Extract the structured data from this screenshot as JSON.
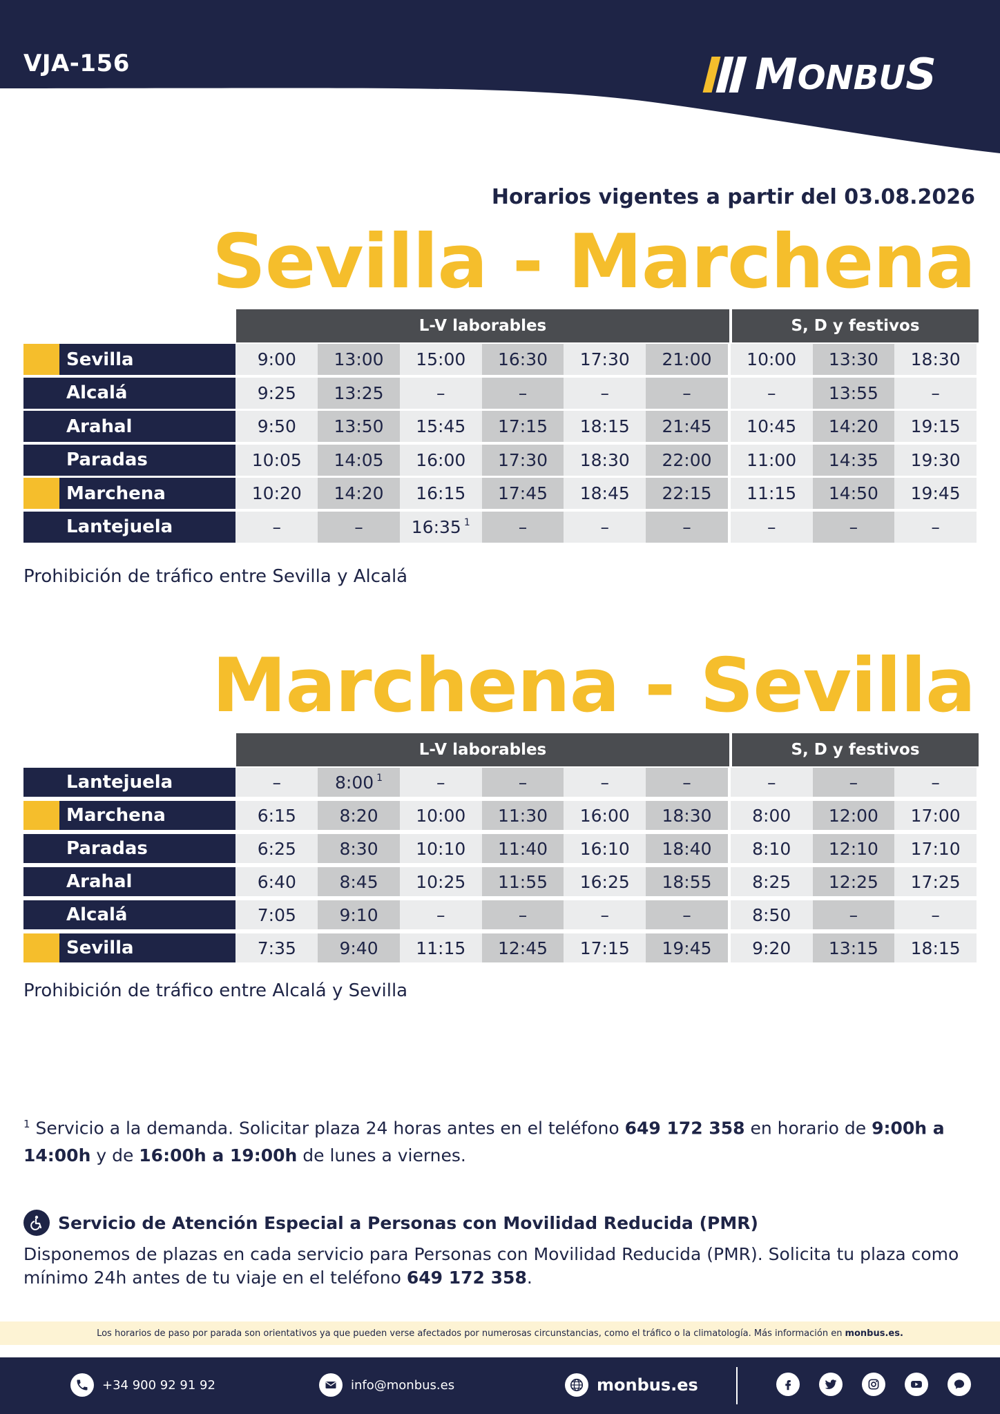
{
  "header": {
    "route_code": "VJA-156",
    "brand": "MONBUS",
    "validity": "Horarios vigentes a partir del 03.08.2026",
    "colors": {
      "navy": "#1e2446",
      "yellow": "#f5be2c",
      "gray_header": "#4a4c50"
    }
  },
  "timetables": [
    {
      "title": "Sevilla - Marchena",
      "groups": [
        {
          "label": "L-V laborables",
          "columns": 6
        },
        {
          "label": "S, D y festivos",
          "columns": 3
        }
      ],
      "rows": [
        {
          "stop": "Sevilla",
          "marked": true,
          "times": [
            "9:00",
            "13:00",
            "15:00",
            "16:30",
            "17:30",
            "21:00",
            "10:00",
            "13:30",
            "18:30"
          ]
        },
        {
          "stop": "Alcalá",
          "marked": false,
          "times": [
            "9:25",
            "13:25",
            "–",
            "–",
            "–",
            "–",
            "–",
            "13:55",
            "–"
          ]
        },
        {
          "stop": "Arahal",
          "marked": false,
          "times": [
            "9:50",
            "13:50",
            "15:45",
            "17:15",
            "18:15",
            "21:45",
            "10:45",
            "14:20",
            "19:15"
          ]
        },
        {
          "stop": "Paradas",
          "marked": false,
          "times": [
            "10:05",
            "14:05",
            "16:00",
            "17:30",
            "18:30",
            "22:00",
            "11:00",
            "14:35",
            "19:30"
          ]
        },
        {
          "stop": "Marchena",
          "marked": true,
          "times": [
            "10:20",
            "14:20",
            "16:15",
            "17:45",
            "18:45",
            "22:15",
            "11:15",
            "14:50",
            "19:45"
          ]
        },
        {
          "stop": "Lantejuela",
          "marked": false,
          "times": [
            "–",
            "–",
            "16:35",
            "–",
            "–",
            "–",
            "–",
            "–",
            "–"
          ],
          "footnote_col": 2
        }
      ],
      "note": "Prohibición de tráfico entre Sevilla y Alcalá"
    },
    {
      "title": "Marchena - Sevilla",
      "groups": [
        {
          "label": "L-V laborables",
          "columns": 6
        },
        {
          "label": "S, D y festivos",
          "columns": 3
        }
      ],
      "rows": [
        {
          "stop": "Lantejuela",
          "marked": false,
          "times": [
            "–",
            "8:00",
            "–",
            "–",
            "–",
            "–",
            "–",
            "–",
            "–"
          ],
          "footnote_col": 1
        },
        {
          "stop": "Marchena",
          "marked": true,
          "times": [
            "6:15",
            "8:20",
            "10:00",
            "11:30",
            "16:00",
            "18:30",
            "8:00",
            "12:00",
            "17:00"
          ]
        },
        {
          "stop": "Paradas",
          "marked": false,
          "times": [
            "6:25",
            "8:30",
            "10:10",
            "11:40",
            "16:10",
            "18:40",
            "8:10",
            "12:10",
            "17:10"
          ]
        },
        {
          "stop": "Arahal",
          "marked": false,
          "times": [
            "6:40",
            "8:45",
            "10:25",
            "11:55",
            "16:25",
            "18:55",
            "8:25",
            "12:25",
            "17:25"
          ]
        },
        {
          "stop": "Alcalá",
          "marked": false,
          "times": [
            "7:05",
            "9:10",
            "–",
            "–",
            "–",
            "–",
            "8:50",
            "–",
            "–"
          ]
        },
        {
          "stop": "Sevilla",
          "marked": true,
          "times": [
            "7:35",
            "9:40",
            "11:15",
            "12:45",
            "17:15",
            "19:45",
            "9:20",
            "13:15",
            "18:15"
          ]
        }
      ],
      "note": "Prohibición de tráfico entre Alcalá y Sevilla"
    }
  ],
  "footnote": {
    "marker": "1",
    "text_1": " Servicio a la demanda. Solicitar plaza 24 horas antes en el teléfono ",
    "phone": "649 172 358",
    "text_2": " en horario de ",
    "hours_1": "9:00h a 14:00h",
    "text_3": " y de ",
    "hours_2": "16:00h a 19:00h",
    "text_4": " de lunes a viernes."
  },
  "pmr": {
    "icon": "wheelchair-icon",
    "title": "Servicio de Atención Especial a Personas con Movilidad Reducida (PMR)",
    "text_1": "Disponemos de plazas en cada servicio para Personas con Movilidad Reducida (PMR). Solicita tu plaza como mínimo 24h antes de tu viaje en el teléfono ",
    "phone": "649 172 358",
    "text_2": "."
  },
  "disclaimer": {
    "text": "Los horarios de paso por parada son orientativos ya que pueden verse afectados por numerosas circunstancias, como el tráfico o la climatología. Más información en",
    "link": "monbus.es."
  },
  "footer": {
    "phone": "+34 900 92 91 92",
    "email": "info@monbus.es",
    "web": "monbus.es",
    "social_icons": [
      "facebook-icon",
      "twitter-icon",
      "instagram-icon",
      "youtube-icon",
      "chat-icon"
    ]
  }
}
